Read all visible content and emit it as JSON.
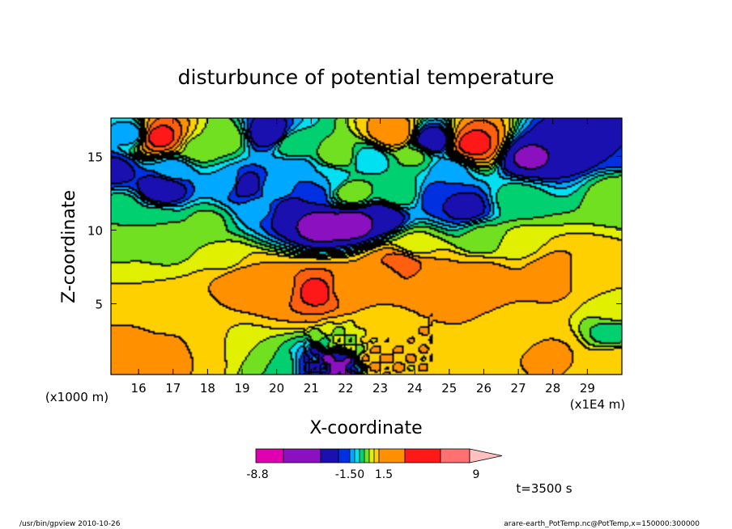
{
  "chart_data": {
    "type": "heatmap",
    "title": "disturbunce of potential temperature",
    "xlabel": "X-coordinate",
    "ylabel": "Z-coordinate",
    "x_unit_label": "(x1E4 m)",
    "y_unit_label": "(x1000 m)",
    "xlim": [
      15.2,
      30.0
    ],
    "ylim": [
      0.2,
      17.6
    ],
    "x_ticks": [
      "16",
      "17",
      "18",
      "19",
      "20",
      "21",
      "22",
      "23",
      "24",
      "25",
      "26",
      "27",
      "28",
      "29"
    ],
    "y_ticks": [
      "5",
      "10",
      "15"
    ],
    "y_tick_values": [
      5,
      10,
      15
    ],
    "colorbar": {
      "labels": [
        "-8.8",
        "-1.50",
        "1.5",
        "9"
      ],
      "colors": [
        "#e000b0",
        "#8a10c0",
        "#1a10b0",
        "#0030e0",
        "#00a8ff",
        "#00e0f0",
        "#00d070",
        "#70e020",
        "#e0f000",
        "#ffd000",
        "#ff9000",
        "#ff6010",
        "#ff1818",
        "#ff7070",
        "#ffc0c0"
      ]
    },
    "annotation": "t=3500 s",
    "field": [
      {
        "x": 15.3,
        "z": 14,
        "v": -1.7
      },
      {
        "x": 15.5,
        "z": 11.5,
        "v": 0.3
      },
      {
        "x": 15.8,
        "z": 16.5,
        "v": -0.8
      },
      {
        "x": 16.6,
        "z": 16.3,
        "v": 6.0
      },
      {
        "x": 16.7,
        "z": 12.8,
        "v": -2.2
      },
      {
        "x": 17.0,
        "z": 14.0,
        "v": -0.8
      },
      {
        "x": 17.8,
        "z": 15.5,
        "v": 0.8
      },
      {
        "x": 18.5,
        "z": 16.2,
        "v": 0.9
      },
      {
        "x": 18.6,
        "z": 13.2,
        "v": -0.5
      },
      {
        "x": 19.1,
        "z": 13.0,
        "v": -2.0
      },
      {
        "x": 19.5,
        "z": 11.5,
        "v": -0.9
      },
      {
        "x": 19.8,
        "z": 16.5,
        "v": -2.2
      },
      {
        "x": 20.0,
        "z": 12.8,
        "v": -0.7
      },
      {
        "x": 20.5,
        "z": 11.2,
        "v": -2.5
      },
      {
        "x": 20.5,
        "z": 15.8,
        "v": 0.5
      },
      {
        "x": 20.5,
        "z": 14.0,
        "v": -0.9
      },
      {
        "x": 21.0,
        "z": 12.5,
        "v": -1.3
      },
      {
        "x": 21.3,
        "z": 10.3,
        "v": -3.0
      },
      {
        "x": 21.5,
        "z": 13.5,
        "v": -0.5
      },
      {
        "x": 21.8,
        "z": 15.0,
        "v": 0.9
      },
      {
        "x": 22.2,
        "z": 12.5,
        "v": 0.9
      },
      {
        "x": 22.2,
        "z": 10.4,
        "v": -3.0
      },
      {
        "x": 22.7,
        "z": 14.8,
        "v": -0.3
      },
      {
        "x": 23.0,
        "z": 10.8,
        "v": -2.5
      },
      {
        "x": 23.4,
        "z": 16.5,
        "v": 3.5
      },
      {
        "x": 23.5,
        "z": 12.5,
        "v": 0.5
      },
      {
        "x": 24.0,
        "z": 15.0,
        "v": 0.6
      },
      {
        "x": 24.5,
        "z": 16.0,
        "v": -2.3
      },
      {
        "x": 24.8,
        "z": 12.2,
        "v": -1.5
      },
      {
        "x": 25.0,
        "z": 14.0,
        "v": -0.8
      },
      {
        "x": 25.7,
        "z": 15.8,
        "v": 6.0
      },
      {
        "x": 25.5,
        "z": 11.5,
        "v": -1.8
      },
      {
        "x": 26.0,
        "z": 9.5,
        "v": 0.6
      },
      {
        "x": 27.3,
        "z": 14.9,
        "v": -2.6
      },
      {
        "x": 28.5,
        "z": 15.5,
        "v": -2.5
      },
      {
        "x": 29.8,
        "z": 15.5,
        "v": -1.5
      },
      {
        "x": 29.9,
        "z": 12.5,
        "v": 0.8
      },
      {
        "x": 27.0,
        "z": 12.0,
        "v": 0.3
      },
      {
        "x": 15.4,
        "z": 9.0,
        "v": 0.9
      },
      {
        "x": 15.5,
        "z": 6.0,
        "v": 1.5
      },
      {
        "x": 15.3,
        "z": 3.5,
        "v": 2.5
      },
      {
        "x": 15.5,
        "z": 1.5,
        "v": 3.2
      },
      {
        "x": 17.0,
        "z": 9.0,
        "v": 0.9
      },
      {
        "x": 17.2,
        "z": 4.5,
        "v": 2.0
      },
      {
        "x": 18.5,
        "z": 8.0,
        "v": 1.3
      },
      {
        "x": 19.0,
        "z": 6.5,
        "v": 3.3
      },
      {
        "x": 20.0,
        "z": 6.0,
        "v": 3.5
      },
      {
        "x": 21.2,
        "z": 5.8,
        "v": 6.0
      },
      {
        "x": 22.0,
        "z": 6.0,
        "v": 3.4
      },
      {
        "x": 23.2,
        "z": 7.0,
        "v": 3.4
      },
      {
        "x": 23.6,
        "z": 7.6,
        "v": 5.0
      },
      {
        "x": 24.5,
        "z": 6.5,
        "v": 3.4
      },
      {
        "x": 26.0,
        "z": 6.5,
        "v": 3.4
      },
      {
        "x": 28.0,
        "z": 7.0,
        "v": 3.4
      },
      {
        "x": 29.0,
        "z": 7.0,
        "v": 2.0
      },
      {
        "x": 29.8,
        "z": 4.5,
        "v": 1.2
      },
      {
        "x": 29.7,
        "z": 3.0,
        "v": 0.3
      },
      {
        "x": 29.8,
        "z": 1.0,
        "v": 2.0
      },
      {
        "x": 27.0,
        "z": 3.5,
        "v": 2.2
      },
      {
        "x": 25.0,
        "z": 3.5,
        "v": 2.5
      },
      {
        "x": 23.0,
        "z": 3.5,
        "v": 2.0
      },
      {
        "x": 22.0,
        "z": 2.5,
        "v": 1.0
      },
      {
        "x": 21.7,
        "z": 0.8,
        "v": -3.0
      },
      {
        "x": 21.2,
        "z": 0.6,
        "v": -1.5
      },
      {
        "x": 20.0,
        "z": 0.6,
        "v": 0.5
      },
      {
        "x": 19.0,
        "z": 2.0,
        "v": 1.0
      },
      {
        "x": 18.0,
        "z": 2.0,
        "v": 2.2
      },
      {
        "x": 17.0,
        "z": 1.5,
        "v": 2.8
      },
      {
        "x": 23.0,
        "z": 1.2,
        "v": 2.5
      },
      {
        "x": 26.0,
        "z": 1.5,
        "v": 2.5
      },
      {
        "x": 28.0,
        "z": 1.5,
        "v": 2.6
      },
      {
        "x": 27.0,
        "z": 9.0,
        "v": 1.3
      },
      {
        "x": 24.0,
        "z": 9.0,
        "v": 1.1
      },
      {
        "x": 18.0,
        "z": 10.5,
        "v": 0.6
      },
      {
        "x": 16.5,
        "z": 10.5,
        "v": 0.5
      }
    ]
  },
  "footer": {
    "left": "/usr/bin/gpview   2010-10-26",
    "right": "arare-earth_PotTemp.nc@PotTemp,x=150000:300000"
  }
}
